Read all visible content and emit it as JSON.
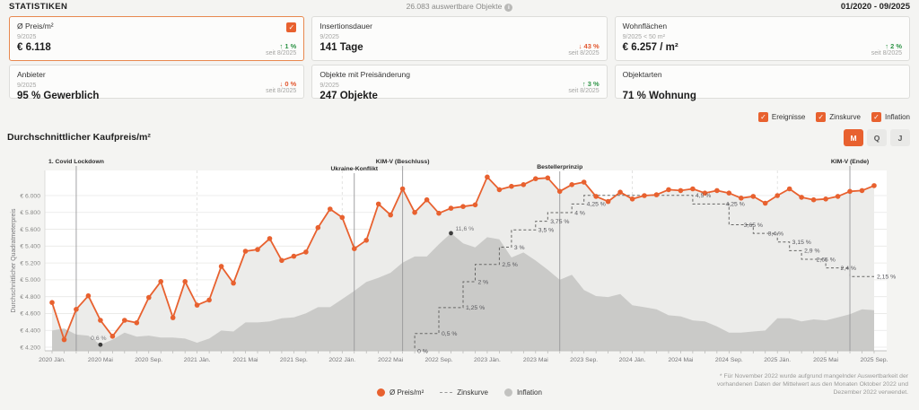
{
  "glyphs": {
    "check": "✓",
    "info": "i"
  },
  "header": {
    "title": "STATISTIKEN",
    "objects_count": "26.083 auswertbare Objekte",
    "period": "01/2020 - 09/2025"
  },
  "kpi_cards": [
    {
      "title": "Ø Preis/m²",
      "date": "9/2025",
      "value": "€ 6.118",
      "arrow": "↑",
      "trend": "1 %",
      "trend_color": "#2e9447",
      "since": "seit 8/2025"
    },
    {
      "title": "Insertionsdauer",
      "date": "9/2025",
      "value": "141 Tage",
      "arrow": "↓",
      "trend": "43 %",
      "trend_color": "#e2572f",
      "since": "seit 8/2025"
    },
    {
      "title": "Wohnflächen",
      "date": "9/2025 < 50 m²",
      "value": "€ 6.257 / m²",
      "arrow": "↑",
      "trend": "2 %",
      "trend_color": "#2e9447",
      "since": "seit 8/2025"
    },
    {
      "title": "Anbieter",
      "date": "9/2025",
      "value": "95 % Gewerblich",
      "arrow": "↓",
      "trend": "0 %",
      "trend_color": "#e2572f",
      "since": "seit 8/2025"
    },
    {
      "title": "Objekte mit Preisänderung",
      "date": "9/2025",
      "value": "247 Objekte",
      "arrow": "↑",
      "trend": "3 %",
      "trend_color": "#2e9447",
      "since": "seit 8/2025"
    },
    {
      "title": "Objektarten",
      "date": "",
      "value": "71 % Wohnung"
    }
  ],
  "chart_controls": {
    "title": "Durchschnittlicher Kaufpreis/m²",
    "checkboxes": [
      {
        "label": "Ereignisse",
        "checked": true
      },
      {
        "label": "Zinskurve",
        "checked": true
      },
      {
        "label": "Inflation",
        "checked": true
      }
    ],
    "buttons": [
      {
        "label": "M",
        "active": true
      },
      {
        "label": "Q",
        "active": false
      },
      {
        "label": "J",
        "active": false
      }
    ]
  },
  "chart_data": {
    "type": "line",
    "title": "Durchschnittlicher Kaufpreis/m²",
    "ylabel": "Durchschnittlicher Quadratmeterpreis",
    "ylim": [
      4200,
      6000
    ],
    "grid": true,
    "months_start": "2020 Jän.",
    "months_end": "2025 Sep.",
    "y_ticks": [
      {
        "label": "€ 6.000",
        "value": 6000
      },
      {
        "label": "€ 5.800",
        "value": 5800
      },
      {
        "label": "€ 5.600",
        "value": 5600
      },
      {
        "label": "€ 5.400",
        "value": 5400
      },
      {
        "label": "€ 5.200",
        "value": 5200
      },
      {
        "label": "€ 5.000",
        "value": 5000
      },
      {
        "label": "€ 4.800",
        "value": 4800
      },
      {
        "label": "€ 4.600",
        "value": 4600
      },
      {
        "label": "€ 4.400",
        "value": 4400
      },
      {
        "label": "€ 4.200",
        "value": 4200
      }
    ],
    "x_tick_labels": [
      "2020 Jän.",
      "2020 Mai",
      "2020 Sep.",
      "2021 Jän.",
      "2021 Mai",
      "2021 Sep.",
      "2022 Jän.",
      "2022 Mai",
      "2022 Sep.",
      "2023 Jän.",
      "2023 Mai",
      "2023 Sep.",
      "2024 Jän.",
      "2024 Mai",
      "2024 Sep.",
      "2025 Jän.",
      "2025 Mai",
      "2025 Sep."
    ],
    "x_tick_every": 4,
    "events": [
      {
        "label": "1. Covid Lockdown",
        "m": 2,
        "dy": 0
      },
      {
        "label": "Ukraine-Konflikt",
        "m": 25,
        "dy": 8
      },
      {
        "label": "KIM-V (Beschluss)",
        "m": 29,
        "dy": 0
      },
      {
        "label": "Bestellerprinzip",
        "m": 42,
        "dy": 6
      },
      {
        "label": "KIM-V (Ende)",
        "m": 66,
        "dy": 0
      }
    ],
    "series": [
      {
        "name": "Ø Preis/m²",
        "type": "line",
        "unit": "EUR/m2",
        "color": "#e8612f",
        "values": [
          4730,
          4290,
          4650,
          4810,
          4520,
          4330,
          4520,
          4490,
          4790,
          4980,
          4550,
          4980,
          4700,
          4760,
          5160,
          4960,
          5340,
          5360,
          5490,
          5230,
          5280,
          5330,
          5620,
          5840,
          5740,
          5370,
          5470,
          5900,
          5770,
          6080,
          5800,
          5950,
          5790,
          5850,
          5870,
          5890,
          6220,
          6070,
          6110,
          6130,
          6200,
          6210,
          6050,
          6130,
          6160,
          5990,
          5930,
          6040,
          5960,
          6000,
          6010,
          6070,
          6060,
          6080,
          6030,
          6060,
          6030,
          5970,
          5990,
          5910,
          6000,
          6080,
          5980,
          5950,
          5960,
          5990,
          6050,
          6060,
          6118
        ]
      },
      {
        "name": "Zinskurve",
        "type": "step",
        "unit": "%",
        "color": "#666664",
        "steps": [
          [
            0,
            0
          ],
          [
            30,
            0
          ],
          [
            30,
            0.5
          ],
          [
            32,
            0.5
          ],
          [
            32,
            1.25
          ],
          [
            34,
            1.25
          ],
          [
            34,
            2
          ],
          [
            35,
            2
          ],
          [
            35,
            2.5
          ],
          [
            37,
            2.5
          ],
          [
            37,
            3
          ],
          [
            38,
            3
          ],
          [
            38,
            3.5
          ],
          [
            40,
            3.5
          ],
          [
            40,
            3.75
          ],
          [
            41,
            3.75
          ],
          [
            41,
            4
          ],
          [
            43,
            4
          ],
          [
            43,
            4.25
          ],
          [
            44,
            4.25
          ],
          [
            44,
            4.5
          ],
          [
            53,
            4.5
          ],
          [
            53,
            4.25
          ],
          [
            56,
            4.25
          ],
          [
            56,
            3.65
          ],
          [
            58,
            3.65
          ],
          [
            58,
            3.4
          ],
          [
            60,
            3.4
          ],
          [
            60,
            3.15
          ],
          [
            61,
            3.15
          ],
          [
            61,
            2.9
          ],
          [
            62,
            2.9
          ],
          [
            62,
            2.65
          ],
          [
            64,
            2.65
          ],
          [
            64,
            2.4
          ],
          [
            66,
            2.4
          ],
          [
            66,
            2.15
          ],
          [
            68,
            2.15
          ]
        ],
        "labels": [
          {
            "text": "0 %",
            "m": 30,
            "r": 0
          },
          {
            "text": "0,5 %",
            "m": 32,
            "r": 0.5
          },
          {
            "text": "1,25 %",
            "m": 34,
            "r": 1.25
          },
          {
            "text": "2 %",
            "m": 35,
            "r": 2
          },
          {
            "text": "2,5 %",
            "m": 37,
            "r": 2.5
          },
          {
            "text": "3 %",
            "m": 38,
            "r": 3
          },
          {
            "text": "3,5 %",
            "m": 40,
            "r": 3.5
          },
          {
            "text": "3,75 %",
            "m": 41,
            "r": 3.75
          },
          {
            "text": "4 %",
            "m": 43,
            "r": 4
          },
          {
            "text": "4,25 %",
            "m": 44,
            "r": 4.25
          },
          {
            "text": "4,5 %",
            "m": 53,
            "r": 4.5
          },
          {
            "text": "4,25 %",
            "m": 55.5,
            "r": 4.25
          },
          {
            "text": "3,65 %",
            "m": 57,
            "r": 3.65
          },
          {
            "text": "3,4 %",
            "m": 59,
            "r": 3.4
          },
          {
            "text": "3,15 %",
            "m": 61,
            "r": 3.15
          },
          {
            "text": "2,9 %",
            "m": 62,
            "r": 2.9
          },
          {
            "text": "2,65 %",
            "m": 63,
            "r": 2.65
          },
          {
            "text": "2,4 %",
            "m": 65,
            "r": 2.4
          },
          {
            "text": "2,15 %",
            "m": 68,
            "r": 2.15
          }
        ]
      },
      {
        "name": "Inflation",
        "type": "area",
        "unit": "%",
        "color": "#c8c8c6",
        "values": [
          2.0,
          2.2,
          1.6,
          1.5,
          0.6,
          1.1,
          1.8,
          1.4,
          1.5,
          1.3,
          1.3,
          1.2,
          0.8,
          1.2,
          2.0,
          1.9,
          2.8,
          2.8,
          2.9,
          3.2,
          3.3,
          3.7,
          4.3,
          4.3,
          5.1,
          5.9,
          6.8,
          7.2,
          7.7,
          8.7,
          9.3,
          9.3,
          10.5,
          11.6,
          10.6,
          10.2,
          11.2,
          11.0,
          9.2,
          9.7,
          8.9,
          8.0,
          7.0,
          7.5,
          6.0,
          5.4,
          5.3,
          5.6,
          4.5,
          4.3,
          4.1,
          3.5,
          3.4,
          3.0,
          2.9,
          2.4,
          1.8,
          1.8,
          1.9,
          2.0,
          3.2,
          3.2,
          2.9,
          3.1,
          3.0,
          3.3,
          3.6,
          4.1,
          4.0
        ],
        "extremes": [
          {
            "text": "0,6 %",
            "m": 4,
            "v": 0.6,
            "dx": -2,
            "dy": -5,
            "anchor": "middle"
          },
          {
            "text": "11,6 %",
            "m": 33,
            "v": 11.6,
            "dx": 5,
            "dy": -3,
            "anchor": "start"
          }
        ]
      }
    ]
  },
  "legend": {
    "items": [
      {
        "label": "Ø Preis/m²",
        "marker_color": "#e8612f"
      },
      {
        "label": "Zinskurve"
      },
      {
        "label": "Inflation",
        "marker_color": "#c2c2c0"
      }
    ]
  },
  "footnote": "* Für November 2022 wurde aufgrund mangelnder Auswertbarkeit der vorhandenen Daten der Mittelwert aus den Monaten Oktober 2022 und Dezember 2022 verwendet."
}
